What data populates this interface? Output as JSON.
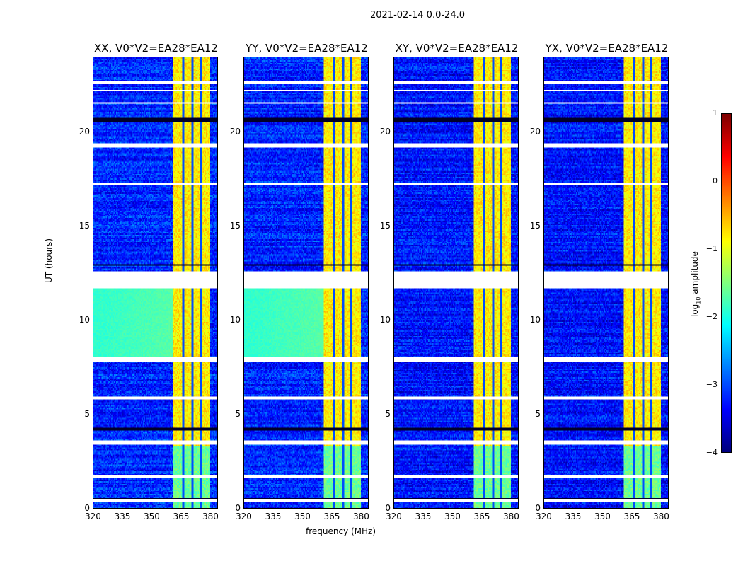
{
  "chart_data": {
    "type": "heatmap",
    "title": "2021-02-14 0.0-24.0",
    "xlabel": "frequency (MHz)",
    "ylabel": "UT (hours)",
    "xlim": [
      320,
      384
    ],
    "ylim": [
      0,
      24
    ],
    "xticks": [
      "320",
      "335",
      "350",
      "365",
      "380"
    ],
    "xtick_values": [
      320,
      335,
      350,
      365,
      380
    ],
    "yticks": [
      "0",
      "5",
      "10",
      "15",
      "20"
    ],
    "ytick_values": [
      0,
      5,
      10,
      15,
      20
    ],
    "panels": [
      {
        "title": "XX, V0*V2=EA28*EA12",
        "background_level": -3.2,
        "green_hours": [
          8.0,
          11.7
        ]
      },
      {
        "title": "YY, V0*V2=EA28*EA12",
        "background_level": -3.2,
        "green_hours": [
          8.0,
          11.7
        ]
      },
      {
        "title": "XY, V0*V2=EA28*EA12",
        "background_level": -3.3,
        "green_hours": null
      },
      {
        "title": "YX, V0*V2=EA28*EA12",
        "background_level": -3.3,
        "green_hours": null
      }
    ],
    "rfi_band_mhz": [
      361,
      380
    ],
    "rfi_level": -0.8,
    "flagged_hours": [
      [
        0.3,
        0.45
      ],
      [
        1.6,
        1.7
      ],
      [
        3.4,
        3.6
      ],
      [
        5.75,
        5.9
      ],
      [
        7.8,
        8.0
      ],
      [
        11.7,
        12.6
      ],
      [
        17.2,
        17.35
      ],
      [
        19.2,
        19.45
      ],
      [
        21.5,
        21.6
      ],
      [
        22.2,
        22.3
      ],
      [
        22.6,
        22.7
      ]
    ],
    "dark_hours": [
      [
        0.48,
        0.55
      ],
      [
        4.1,
        4.25
      ],
      [
        12.9,
        13.0
      ],
      [
        20.55,
        20.8
      ]
    ],
    "colorbar": {
      "label": "log10 amplitude",
      "label_main": "log",
      "label_sub": "10",
      "label_tail": " amplitude",
      "range": [
        -4,
        1
      ],
      "ticks": [
        "1",
        "0",
        "−1",
        "−2",
        "−3",
        "−4"
      ],
      "tick_values": [
        1,
        0,
        -1,
        -2,
        -3,
        -4
      ]
    }
  }
}
